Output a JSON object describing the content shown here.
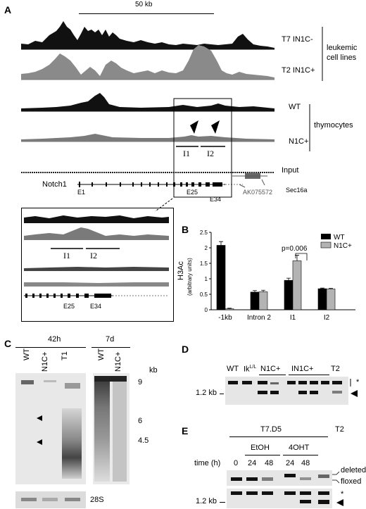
{
  "panels": {
    "A": {
      "letter": "A",
      "scale_label": "50 kb",
      "tracks": [
        "T7 IN1C-",
        "T2 IN1C+",
        "WT",
        "N1C+",
        "Input"
      ],
      "group_leukemic": [
        "leukemic",
        "cell lines"
      ],
      "group_thymocytes": "thymocytes",
      "region_labels": [
        "I1",
        "I2"
      ],
      "gene": "Notch1",
      "exons": [
        "E1",
        "E25",
        "E34"
      ],
      "genes_other": [
        "AK075572",
        "Sec16a"
      ],
      "zoom_region_labels": [
        "I1",
        "I2"
      ],
      "zoom_exons": [
        "E25",
        "E34"
      ]
    },
    "B": {
      "letter": "B",
      "ylabel_line1": "H3Ac",
      "ylabel_line2": "(arbitrary units)",
      "pvalue": "p=0.006",
      "yticks": [
        "0",
        "0.5",
        "1",
        "1.5",
        "2",
        "2.5"
      ]
    },
    "C": {
      "letter": "C",
      "time1": "42h",
      "time2": "7d",
      "lanes1": [
        "WT",
        "N1C+",
        "T1"
      ],
      "lanes2": [
        "WT",
        "N1C+"
      ],
      "unit": "kb",
      "markers": [
        "9",
        "6",
        "4.5"
      ],
      "loading": "28S"
    },
    "D": {
      "letter": "D",
      "lanes": [
        "WT",
        "Ik",
        "N1C+",
        "IN1C+",
        "T2"
      ],
      "ik_sup": "L/L",
      "size": "1.2 kb",
      "star": "*"
    },
    "E": {
      "letter": "E",
      "cellline": "T7.D5",
      "t2": "T2",
      "treat1": "EtOH",
      "treat2": "4OHT",
      "time_label": "time (h)",
      "times": [
        "0",
        "24",
        "48",
        "24",
        "48"
      ],
      "deleted": "deleted",
      "floxed": "floxed",
      "size": "1.2 kb",
      "star": "*"
    }
  },
  "chart_data": {
    "type": "bar",
    "categories": [
      "-1kb",
      "Intron 2",
      "I1",
      "I2"
    ],
    "series": [
      {
        "name": "WT",
        "values": [
          2.08,
          0.57,
          0.95,
          0.68
        ]
      },
      {
        "name": "N1C+",
        "values": [
          0.03,
          0.58,
          1.58,
          0.67
        ]
      }
    ],
    "errors": [
      [
        0.12,
        0.05,
        0.07,
        0.02
      ],
      [
        0.02,
        0.05,
        0.18,
        0.02
      ]
    ],
    "colors": {
      "WT": "#000000",
      "N1C+": "#b3b3b3"
    },
    "ylim": [
      0,
      2.5
    ],
    "ylabel": "H3Ac (arbitrary units)",
    "legend": "top-right",
    "annotation": "p=0.006"
  }
}
